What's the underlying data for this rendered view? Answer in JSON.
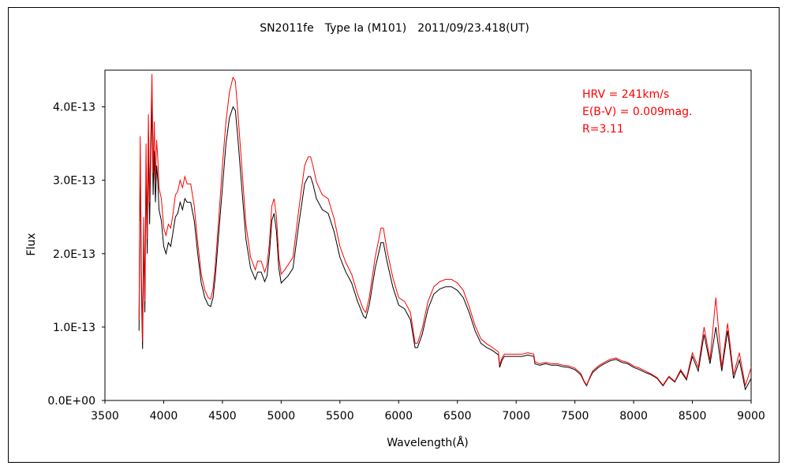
{
  "chart_data": {
    "type": "line",
    "title": "SN2011fe　Type Ia (M101)　2011/09/23.418(UT)",
    "xlabel": "Wavelength(Å)",
    "ylabel": "Flux",
    "xlim": [
      3500,
      9000
    ],
    "ylim": [
      0,
      4.5e-13
    ],
    "x_ticks": [
      "3500",
      "4000",
      "4500",
      "5000",
      "5500",
      "6000",
      "6500",
      "7000",
      "7500",
      "8000",
      "8500",
      "9000"
    ],
    "y_ticks": [
      "0.0E+00",
      "1.0E-13",
      "2.0E-13",
      "3.0E-13",
      "4.0E-13"
    ],
    "grid": false,
    "annotations": [
      "HRV = 241km/s",
      "E(B-V) = 0.009mag.",
      "R=3.11"
    ],
    "series": [
      {
        "color": "#000000",
        "x": [
          3790,
          3800,
          3810,
          3820,
          3830,
          3840,
          3850,
          3860,
          3870,
          3880,
          3890,
          3900,
          3910,
          3920,
          3930,
          3940,
          3950,
          3960,
          3980,
          4000,
          4020,
          4040,
          4060,
          4080,
          4100,
          4120,
          4140,
          4160,
          4180,
          4200,
          4230,
          4260,
          4290,
          4320,
          4350,
          4380,
          4400,
          4420,
          4440,
          4470,
          4500,
          4530,
          4560,
          4590,
          4610,
          4630,
          4660,
          4700,
          4740,
          4780,
          4800,
          4830,
          4860,
          4880,
          4900,
          4920,
          4940,
          4960,
          4980,
          5000,
          5030,
          5060,
          5100,
          5150,
          5200,
          5230,
          5250,
          5270,
          5300,
          5350,
          5400,
          5450,
          5500,
          5550,
          5600,
          5650,
          5700,
          5720,
          5750,
          5800,
          5850,
          5870,
          5900,
          5950,
          6000,
          6050,
          6100,
          6140,
          6160,
          6200,
          6250,
          6300,
          6350,
          6400,
          6450,
          6500,
          6550,
          6600,
          6650,
          6700,
          6750,
          6800,
          6850,
          6860,
          6880,
          6900,
          6950,
          7000,
          7050,
          7100,
          7150,
          7160,
          7200,
          7250,
          7300,
          7350,
          7400,
          7450,
          7500,
          7550,
          7580,
          7600,
          7620,
          7650,
          7700,
          7750,
          7800,
          7850,
          7900,
          7950,
          8000,
          8050,
          8100,
          8150,
          8200,
          8250,
          8300,
          8350,
          8400,
          8450,
          8500,
          8550,
          8600,
          8650,
          8700,
          8750,
          8800,
          8850,
          8900,
          8950,
          9000
        ],
        "values": [
          9.5e-14,
          3.3e-13,
          1.5e-13,
          7e-14,
          2.2e-13,
          1.2e-13,
          3.1e-13,
          2e-13,
          3.5e-13,
          2.4e-13,
          3.3e-13,
          4.1e-13,
          2.8e-13,
          3.4e-13,
          2.7e-13,
          3.2e-13,
          3e-13,
          2.6e-13,
          2.45e-13,
          2.1e-13,
          2e-13,
          2.15e-13,
          2.1e-13,
          2.3e-13,
          2.5e-13,
          2.55e-13,
          2.7e-13,
          2.6e-13,
          2.75e-13,
          2.7e-13,
          2.7e-13,
          2.45e-13,
          2e-13,
          1.6e-13,
          1.4e-13,
          1.3e-13,
          1.28e-13,
          1.4e-13,
          1.7e-13,
          2.3e-13,
          2.9e-13,
          3.5e-13,
          3.85e-13,
          4e-13,
          3.95e-13,
          3.6e-13,
          3e-13,
          2.2e-13,
          1.8e-13,
          1.65e-13,
          1.75e-13,
          1.75e-13,
          1.62e-13,
          1.7e-13,
          2e-13,
          2.45e-13,
          2.55e-13,
          2.3e-13,
          1.8e-13,
          1.6e-13,
          1.65e-13,
          1.7e-13,
          1.8e-13,
          2.4e-13,
          2.95e-13,
          3.05e-13,
          3.05e-13,
          2.95e-13,
          2.75e-13,
          2.6e-13,
          2.55e-13,
          2.3e-13,
          1.95e-13,
          1.75e-13,
          1.6e-13,
          1.35e-13,
          1.15e-13,
          1.12e-13,
          1.3e-13,
          1.8e-13,
          2.15e-13,
          2.15e-13,
          1.9e-13,
          1.55e-13,
          1.3e-13,
          1.25e-13,
          1.1e-13,
          7.2e-14,
          7.2e-14,
          9e-14,
          1.25e-13,
          1.45e-13,
          1.52e-13,
          1.55e-13,
          1.55e-13,
          1.5e-13,
          1.4e-13,
          1.2e-13,
          9.5e-14,
          7.8e-14,
          7.2e-14,
          6.8e-14,
          6.2e-14,
          4.5e-14,
          5.5e-14,
          6e-14,
          6e-14,
          6e-14,
          6e-14,
          6.2e-14,
          6e-14,
          5e-14,
          4.8e-14,
          5e-14,
          4.8e-14,
          4.8e-14,
          4.6e-14,
          4.5e-14,
          4.2e-14,
          3.5e-14,
          2.5e-14,
          2e-14,
          2.8e-14,
          3.8e-14,
          4.5e-14,
          5e-14,
          5.4e-14,
          5.6e-14,
          5.2e-14,
          5e-14,
          4.5e-14,
          4.2e-14,
          3.8e-14,
          3.5e-14,
          3e-14,
          2e-14,
          3.2e-14,
          2.5e-14,
          4e-14,
          2.8e-14,
          6e-14,
          4e-14,
          9e-14,
          5e-14,
          1e-13,
          4e-14,
          9.5e-14,
          3e-14,
          5.5e-14,
          1.5e-14,
          3e-14
        ]
      },
      {
        "color": "#ff0000",
        "x": [
          3790,
          3800,
          3810,
          3820,
          3830,
          3840,
          3850,
          3860,
          3870,
          3880,
          3890,
          3900,
          3910,
          3920,
          3930,
          3940,
          3950,
          3960,
          3980,
          4000,
          4020,
          4040,
          4060,
          4080,
          4100,
          4120,
          4140,
          4160,
          4180,
          4200,
          4230,
          4260,
          4290,
          4320,
          4350,
          4380,
          4400,
          4420,
          4440,
          4470,
          4500,
          4530,
          4560,
          4590,
          4610,
          4630,
          4660,
          4700,
          4740,
          4780,
          4800,
          4830,
          4860,
          4880,
          4900,
          4920,
          4940,
          4960,
          4980,
          5000,
          5030,
          5060,
          5100,
          5150,
          5200,
          5230,
          5250,
          5270,
          5300,
          5350,
          5400,
          5450,
          5500,
          5550,
          5600,
          5650,
          5700,
          5720,
          5750,
          5800,
          5850,
          5870,
          5900,
          5950,
          6000,
          6050,
          6100,
          6140,
          6160,
          6200,
          6250,
          6300,
          6350,
          6400,
          6450,
          6500,
          6550,
          6600,
          6650,
          6700,
          6750,
          6800,
          6850,
          6860,
          6880,
          6900,
          6950,
          7000,
          7050,
          7100,
          7150,
          7160,
          7200,
          7250,
          7300,
          7350,
          7400,
          7450,
          7500,
          7550,
          7580,
          7600,
          7620,
          7650,
          7700,
          7750,
          7800,
          7850,
          7900,
          7950,
          8000,
          8050,
          8100,
          8150,
          8200,
          8250,
          8300,
          8350,
          8400,
          8450,
          8500,
          8550,
          8600,
          8650,
          8700,
          8750,
          8800,
          8850,
          8900,
          8950,
          9000
        ],
        "values": [
          1.1e-13,
          3.6e-13,
          1.8e-13,
          8e-14,
          2.5e-13,
          1.35e-13,
          3.5e-13,
          2.2e-13,
          3.9e-13,
          2.7e-13,
          3.6e-13,
          4.45e-13,
          3.1e-13,
          3.8e-13,
          3e-13,
          3.55e-13,
          3.3e-13,
          2.9e-13,
          2.75e-13,
          2.35e-13,
          2.25e-13,
          2.4e-13,
          2.35e-13,
          2.55e-13,
          2.8e-13,
          2.85e-13,
          3e-13,
          2.9e-13,
          3.05e-13,
          2.95e-13,
          2.95e-13,
          2.65e-13,
          2.15e-13,
          1.72e-13,
          1.5e-13,
          1.4e-13,
          1.38e-13,
          1.52e-13,
          1.85e-13,
          2.5e-13,
          3.2e-13,
          3.8e-13,
          4.2e-13,
          4.4e-13,
          4.35e-13,
          3.95e-13,
          3.3e-13,
          2.4e-13,
          1.95e-13,
          1.78e-13,
          1.9e-13,
          1.9e-13,
          1.75e-13,
          1.85e-13,
          2.15e-13,
          2.65e-13,
          2.75e-13,
          2.5e-13,
          1.95e-13,
          1.72e-13,
          1.78e-13,
          1.85e-13,
          1.95e-13,
          2.6e-13,
          3.2e-13,
          3.32e-13,
          3.32e-13,
          3.2e-13,
          2.98e-13,
          2.8e-13,
          2.75e-13,
          2.48e-13,
          2.1e-13,
          1.88e-13,
          1.72e-13,
          1.45e-13,
          1.24e-13,
          1.2e-13,
          1.4e-13,
          1.95e-13,
          2.35e-13,
          2.35e-13,
          2.05e-13,
          1.68e-13,
          1.4e-13,
          1.35e-13,
          1.2e-13,
          7.8e-14,
          7.8e-14,
          9.8e-14,
          1.35e-13,
          1.55e-13,
          1.62e-13,
          1.65e-13,
          1.65e-13,
          1.6e-13,
          1.5e-13,
          1.28e-13,
          1.02e-13,
          8.4e-14,
          7.7e-14,
          7.2e-14,
          6.6e-14,
          4.8e-14,
          5.8e-14,
          6.3e-14,
          6.3e-14,
          6.3e-14,
          6.3e-14,
          6.5e-14,
          6.3e-14,
          5.3e-14,
          5e-14,
          5.2e-14,
          5e-14,
          5e-14,
          4.8e-14,
          4.7e-14,
          4.4e-14,
          3.7e-14,
          2.6e-14,
          2.1e-14,
          2.9e-14,
          4e-14,
          4.7e-14,
          5.2e-14,
          5.6e-14,
          5.8e-14,
          5.4e-14,
          5.2e-14,
          4.7e-14,
          4.4e-14,
          4e-14,
          3.6e-14,
          3.1e-14,
          2.1e-14,
          3.3e-14,
          2.6e-14,
          4.2e-14,
          3e-14,
          6.5e-14,
          4.5e-14,
          1e-13,
          5.5e-14,
          1.4e-13,
          4.5e-14,
          1.05e-13,
          3.5e-14,
          6.5e-14,
          2e-14,
          4.5e-14
        ]
      }
    ]
  }
}
